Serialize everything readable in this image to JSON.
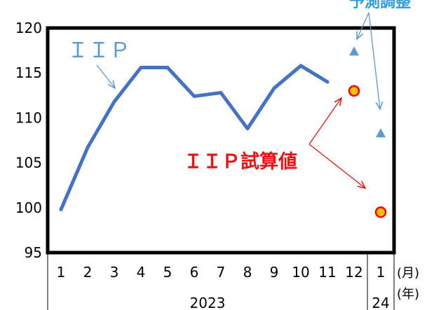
{
  "chart_data": {
    "type": "line",
    "title": "",
    "xlabel": "",
    "ylabel": "",
    "ylim": [
      95,
      120
    ],
    "yticks": [
      95,
      100,
      105,
      110,
      115,
      120
    ],
    "months": [
      "1",
      "2",
      "3",
      "4",
      "5",
      "6",
      "7",
      "8",
      "9",
      "10",
      "11",
      "12",
      "1"
    ],
    "years": [
      {
        "label": "2023",
        "from": 0,
        "to": 11
      },
      {
        "label": "24",
        "from": 12,
        "to": 12
      }
    ],
    "month_unit": "(月)",
    "year_unit": "(年)",
    "series": [
      {
        "name": "ＩＩＰ",
        "color": "#4472c4",
        "values": [
          99.8,
          106.7,
          111.8,
          115.6,
          115.6,
          112.4,
          112.8,
          108.8,
          113.3,
          115.8,
          114.0,
          null,
          null
        ]
      },
      {
        "name": "予測調整",
        "color": "#5b9bd5",
        "values": [
          null,
          null,
          null,
          null,
          null,
          null,
          null,
          null,
          null,
          null,
          null,
          117.4,
          108.3
        ]
      },
      {
        "name": "ＩＩＰ試算値",
        "color": "#ff0000",
        "values": [
          null,
          null,
          null,
          null,
          null,
          null,
          null,
          null,
          null,
          null,
          null,
          113.0,
          99.5
        ]
      }
    ],
    "grid": false,
    "legend": "annotations"
  }
}
